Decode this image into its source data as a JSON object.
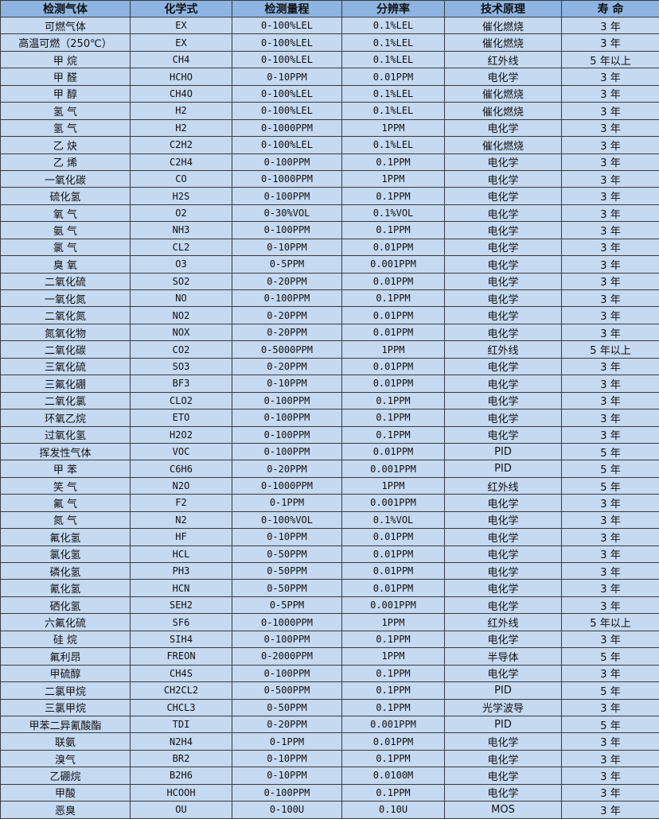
{
  "headers": [
    "检测气体",
    "化学式",
    "检测量程",
    "分辨率",
    "技术原理",
    "寿 命"
  ],
  "rows": [
    [
      "可燃气体",
      "EX",
      "0-100%LEL",
      "0.1%LEL",
      "催化燃烧",
      "3 年"
    ],
    [
      "高温可燃（250℃）",
      "EX",
      "0-100%LEL",
      "0.1%LEL",
      "催化燃烧",
      "3 年"
    ],
    [
      "甲 烷",
      "CH4",
      "0-100%LEL",
      "0.1%LEL",
      "红外线",
      "5 年以上"
    ],
    [
      "甲 醛",
      "HCHO",
      "0-10PPM",
      "0.01PPM",
      "电化学",
      "3 年"
    ],
    [
      "甲 醇",
      "CH4O",
      "0-100%LEL",
      "0.1%LEL",
      "催化燃烧",
      "3 年"
    ],
    [
      "氢 气",
      "H2",
      "0-100%LEL",
      "0.1%LEL",
      "催化燃烧",
      "3 年"
    ],
    [
      "氢 气",
      "H2",
      "0-1000PPM",
      "1PPM",
      "电化学",
      "3 年"
    ],
    [
      "乙 炔",
      "C2H2",
      "0-100%LEL",
      "0.1%LEL",
      "催化燃烧",
      "3 年"
    ],
    [
      "乙 烯",
      "C2H4",
      "0-100PPM",
      "0.1PPM",
      "电化学",
      "3 年"
    ],
    [
      "一氧化碳",
      "CO",
      "0-1000PPM",
      "1PPM",
      "电化学",
      "3 年"
    ],
    [
      "硫化氢",
      "H2S",
      "0-100PPM",
      "0.1PPM",
      "电化学",
      "3 年"
    ],
    [
      "氧 气",
      "O2",
      "0-30%VOL",
      "0.1%VOL",
      "电化学",
      "3 年"
    ],
    [
      "氨 气",
      "NH3",
      "0-100PPM",
      "0.1PPM",
      "电化学",
      "3 年"
    ],
    [
      "氯 气",
      "CL2",
      "0-10PPM",
      "0.01PPM",
      "电化学",
      "3 年"
    ],
    [
      "臭 氧",
      "O3",
      "0-5PPM",
      "0.001PPM",
      "电化学",
      "3 年"
    ],
    [
      "二氧化硫",
      "SO2",
      "0-20PPM",
      "0.01PPM",
      "电化学",
      "3 年"
    ],
    [
      "一氧化氮",
      "NO",
      "0-100PPM",
      "0.1PPM",
      "电化学",
      "3 年"
    ],
    [
      "二氧化氮",
      "NO2",
      "0-20PPM",
      "0.01PPM",
      "电化学",
      "3 年"
    ],
    [
      "氮氧化物",
      "NOX",
      "0-20PPM",
      "0.01PPM",
      "电化学",
      "3 年"
    ],
    [
      "二氧化碳",
      "CO2",
      "0-5000PPM",
      "1PPM",
      "红外线",
      "5 年以上"
    ],
    [
      "三氧化硫",
      "SO3",
      "0-20PPM",
      "0.01PPM",
      "电化学",
      "3 年"
    ],
    [
      "三氟化硼",
      "BF3",
      "0-10PPM",
      "0.01PPM",
      "电化学",
      "3 年"
    ],
    [
      "二氧化氯",
      "CLO2",
      "0-100PPM",
      "0.1PPM",
      "电化学",
      "3 年"
    ],
    [
      "环氧乙烷",
      "ETO",
      "0-100PPM",
      "0.1PPM",
      "电化学",
      "3 年"
    ],
    [
      "过氧化氢",
      "H2O2",
      "0-100PPM",
      "0.1PPM",
      "电化学",
      "3 年"
    ],
    [
      "挥发性气体",
      "VOC",
      "0-100PPM",
      "0.01PPM",
      "PID",
      "5 年"
    ],
    [
      "甲 苯",
      "C6H6",
      "0-20PPM",
      "0.001PPM",
      "PID",
      "5 年"
    ],
    [
      "笑 气",
      "N2O",
      "0-1000PPM",
      "1PPM",
      "红外线",
      "5 年"
    ],
    [
      "氟 气",
      "F2",
      "0-1PPM",
      "0.001PPM",
      "电化学",
      "3 年"
    ],
    [
      "氮 气",
      "N2",
      "0-100%VOL",
      "0.1%VOL",
      "电化学",
      "3 年"
    ],
    [
      "氟化氢",
      "HF",
      "0-10PPM",
      "0.01PPM",
      "电化学",
      "3 年"
    ],
    [
      "氯化氢",
      "HCL",
      "0-50PPM",
      "0.01PPM",
      "电化学",
      "3 年"
    ],
    [
      "磷化氢",
      "PH3",
      "0-50PPM",
      "0.01PPM",
      "电化学",
      "3 年"
    ],
    [
      "氰化氢",
      "HCN",
      "0-50PPM",
      "0.01PPM",
      "电化学",
      "3 年"
    ],
    [
      "硒化氢",
      "SEH2",
      "0-5PPM",
      "0.001PPM",
      "电化学",
      "3 年"
    ],
    [
      "六氟化硫",
      "SF6",
      "0-1000PPM",
      "1PPM",
      "红外线",
      "5 年以上"
    ],
    [
      "硅 烷",
      "SIH4",
      "0-100PPM",
      "0.1PPM",
      "电化学",
      "3 年"
    ],
    [
      "氟利昂",
      "FREON",
      "0-2000PPM",
      "1PPM",
      "半导体",
      "5 年"
    ],
    [
      "甲硫醇",
      "CH4S",
      "0-100PPM",
      "0.1PPM",
      "电化学",
      "3 年"
    ],
    [
      "二氯甲烷",
      "CH2CL2",
      "0-500PPM",
      "0.1PPM",
      "PID",
      "5 年"
    ],
    [
      "三氯甲烷",
      "CHCL3",
      "0-50PPM",
      "0.1PPM",
      "光学波导",
      "3 年"
    ],
    [
      "甲苯二异氰酸酯",
      "TDI",
      "0-20PPM",
      "0.001PPM",
      "PID",
      "5 年"
    ],
    [
      "联氨",
      "N2H4",
      "0-1PPM",
      "0.01PPM",
      "电化学",
      "3 年"
    ],
    [
      "溴气",
      "BR2",
      "0-10PPM",
      "0.1PPM",
      "电化学",
      "3 年"
    ],
    [
      "乙硼烷",
      "B2H6",
      "0-10PPM",
      "0.0100M",
      "电化学",
      "3 年"
    ],
    [
      "甲酸",
      "HCOOH",
      "0-100PPM",
      "0.1PPM",
      "电化学",
      "3 年"
    ],
    [
      "恶臭",
      "OU",
      "0-100U",
      "0.10U",
      "MOS",
      "3 年"
    ]
  ]
}
